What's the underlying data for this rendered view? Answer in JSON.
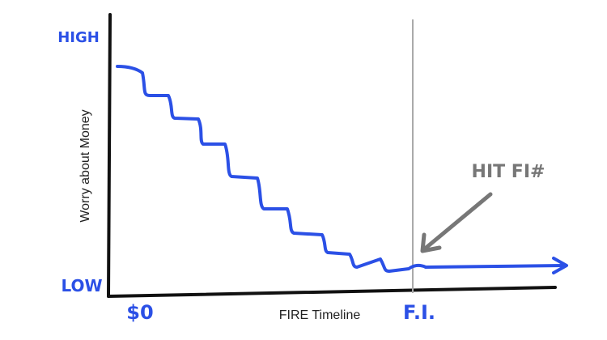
{
  "y_axis": {
    "label": "Worry about Money",
    "high": "HIGH",
    "low": "LOW"
  },
  "x_axis": {
    "label": "FIRE Timeline",
    "start": "$0",
    "end": "F.I."
  },
  "annotation": "HIT FI#"
}
